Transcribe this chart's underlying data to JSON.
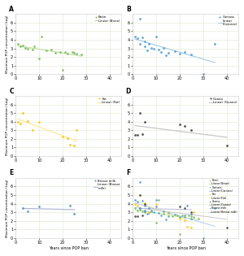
{
  "brain_x": [
    1,
    2,
    3,
    4,
    5,
    7,
    8,
    10,
    11,
    13,
    15,
    17,
    19,
    20,
    21,
    22,
    24,
    25,
    26,
    28
  ],
  "brain_y": [
    3.5,
    3.2,
    3.3,
    3.1,
    3.0,
    2.9,
    3.2,
    1.8,
    4.4,
    2.8,
    2.9,
    2.5,
    2.6,
    0.5,
    2.6,
    2.4,
    2.6,
    2.5,
    2.4,
    2.3
  ],
  "carcass_x": [
    1,
    2,
    3,
    3,
    4,
    5,
    5,
    6,
    7,
    8,
    9,
    10,
    11,
    12,
    13,
    14,
    15,
    18,
    20,
    22,
    25,
    30,
    35
  ],
  "carcass_y": [
    4.4,
    4.2,
    6.5,
    3.5,
    4.3,
    3.2,
    3.8,
    2.8,
    3.5,
    3.1,
    3.0,
    4.4,
    2.9,
    2.6,
    3.1,
    2.2,
    2.5,
    2.7,
    2.4,
    2.6,
    2.3,
    0.0,
    3.5
  ],
  "fat_x": [
    1,
    2,
    3,
    5,
    7,
    10,
    20,
    22,
    23,
    25,
    26
  ],
  "fat_y": [
    4.0,
    3.8,
    5.0,
    4.1,
    3.0,
    4.0,
    2.3,
    2.1,
    1.3,
    1.2,
    3.0
  ],
  "guano_x": [
    1,
    2,
    3,
    4,
    5,
    20,
    22,
    25,
    40
  ],
  "guano_y": [
    2.5,
    2.5,
    5.0,
    2.6,
    4.0,
    3.7,
    3.5,
    3.0,
    1.2
  ],
  "breast_milk_x": [
    3,
    5,
    10,
    23,
    25
  ],
  "breast_milk_y": [
    3.5,
    3.1,
    3.7,
    3.8,
    2.8
  ],
  "brain_color": "#7bbf5a",
  "carcass_color": "#4f9fd4",
  "fat_color": "#ffc000",
  "guano_color": "#404040",
  "breast_milk_color": "#5590c8",
  "brain_line_color": "#c5dfa8",
  "carcass_line_color": "#aad0ea",
  "fat_line_color": "#ffe899",
  "guano_line_color": "#c8c8c8",
  "breast_milk_line_color": "#b0b8d8",
  "ylim": [
    0,
    7
  ],
  "xlim": [
    0,
    45
  ],
  "yticks": [
    0,
    1,
    2,
    3,
    4,
    5,
    6
  ],
  "xticks": [
    0,
    10,
    20,
    30,
    40
  ],
  "xlabel": "Years since POP ban",
  "ylabel": "Maximum POP concentration (Log)",
  "panel_labels": [
    "A",
    "B",
    "C",
    "D",
    "E",
    "F"
  ],
  "bg_color": "#ffffff",
  "grid_color": "#dde8d0"
}
